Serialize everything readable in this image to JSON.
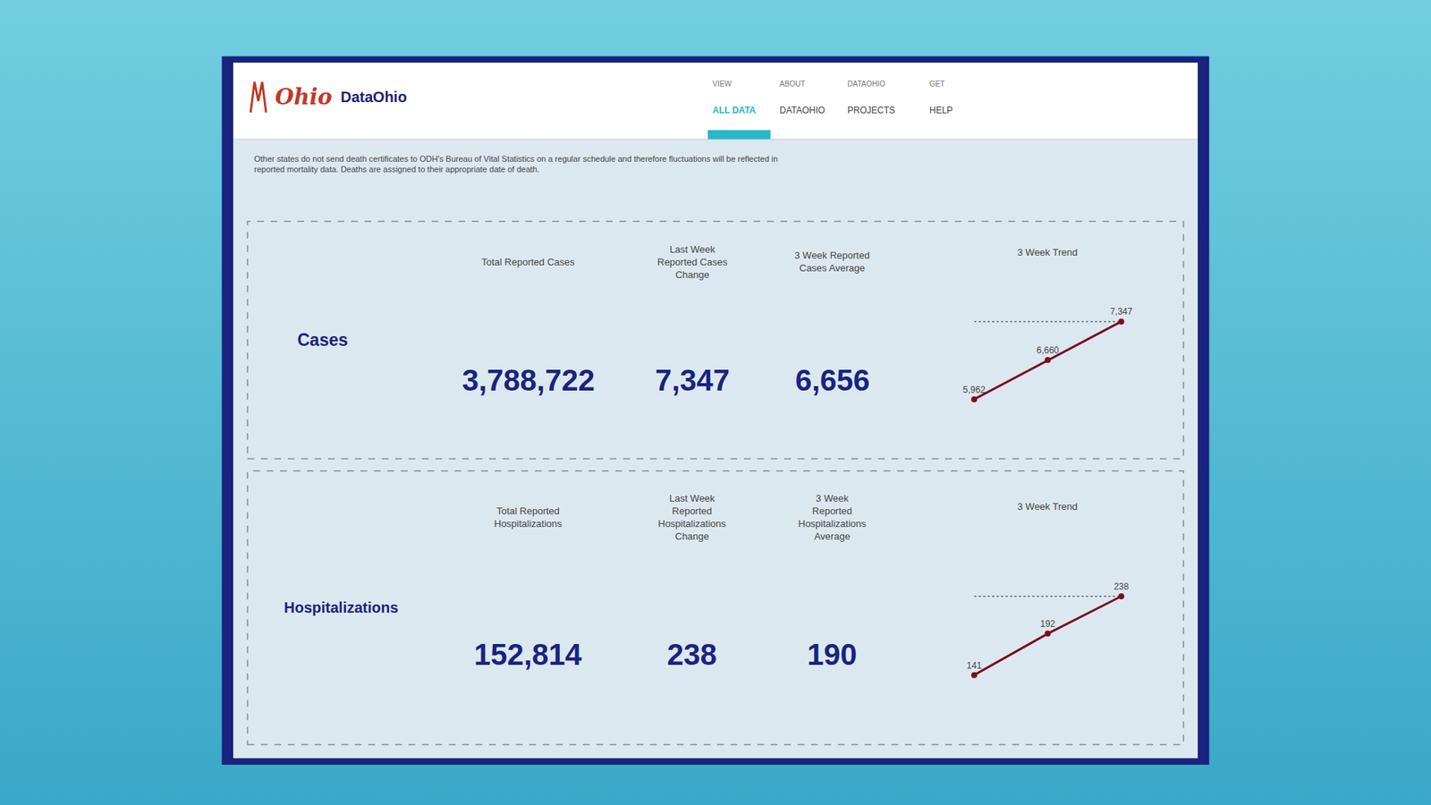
{
  "annotations": [
    "Ohio",
    "DataOhio",
    "VIEW\nALL DATA",
    "ABOUT\nDATAOHIO",
    "DATAOHIO\nPROJECTS",
    "GET\nHELP",
    "Other states do not send death certificates to ODH's Bureau of Vital Statistics on a regular schedule and therefore fluctuations will be reflected in\nreported mortality data. Deaths are assigned to their appropriate date of death."
  ],
  "chart_data": [
    {
      "type": "line",
      "title": "3 Week Trend",
      "categories": [
        null,
        null,
        null
      ],
      "values": [
        5962,
        6660,
        7347
      ],
      "value_labels": [
        "5,962",
        "6,660",
        "7,347"
      ],
      "data_labels": true,
      "color": "#7b0e1e",
      "marker": "circle",
      "tick_labels": false,
      "grid": false,
      "ylim": [
        5662,
        7947
      ],
      "annotations": [
        "Cases",
        "Total Reported Cases",
        "Last Week\nReported Cases\nChange",
        "3 Week Reported\nCases Average",
        "3,788,722",
        "7,347",
        "6,656"
      ]
    },
    {
      "type": "line",
      "title": "3 Week Trend",
      "categories": [
        null,
        null,
        null
      ],
      "values": [
        141,
        192,
        238
      ],
      "value_labels": [
        "141",
        "192",
        "238"
      ],
      "data_labels": true,
      "color": "#7b0e1e",
      "marker": "circle",
      "tick_labels": false,
      "grid": false,
      "ylim": [
        116,
        298
      ],
      "annotations": [
        "Hospitalizations",
        "Total Reported\nHospitalizations",
        "Last Week\nReported\nHospitalizations\nChange",
        "3 Week\nReported\nHospitalizations\nAverage",
        "152,814",
        "238",
        "190"
      ]
    }
  ]
}
